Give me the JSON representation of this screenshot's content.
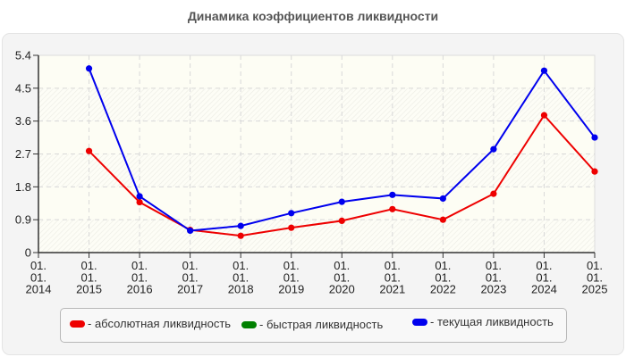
{
  "chart_data": {
    "type": "line",
    "title": "Динамика коэффициентов ликвидности",
    "xlabel": "",
    "ylabel": "",
    "x": [
      "01.\n01.\n2014",
      "01.\n01.\n2015",
      "01.\n01.\n2016",
      "01.\n01.\n2017",
      "01.\n01.\n2018",
      "01.\n01.\n2019",
      "01.\n01.\n2020",
      "01.\n01.\n2021",
      "01.\n01.\n2022",
      "01.\n01.\n2023",
      "01.\n01.\n2024",
      "01.\n01.\n2025"
    ],
    "x_tick_labels": [
      [
        "01.",
        "01.",
        "2014"
      ],
      [
        "01.",
        "01.",
        "2015"
      ],
      [
        "01.",
        "01.",
        "2016"
      ],
      [
        "01.",
        "01.",
        "2017"
      ],
      [
        "01.",
        "01.",
        "2018"
      ],
      [
        "01.",
        "01.",
        "2019"
      ],
      [
        "01.",
        "01.",
        "2020"
      ],
      [
        "01.",
        "01.",
        "2021"
      ],
      [
        "01.",
        "01.",
        "2022"
      ],
      [
        "01.",
        "01.",
        "2023"
      ],
      [
        "01.",
        "01.",
        "2024"
      ],
      [
        "01.",
        "01.",
        "2025"
      ]
    ],
    "y_ticks": [
      "0",
      "0.9",
      "1.8",
      "2.7",
      "3.6",
      "4.5",
      "5.4"
    ],
    "ylim": [
      0,
      5.4
    ],
    "grid": true,
    "legend_position": "bottom",
    "series": [
      {
        "name": "- абсолютная ликвидность",
        "color": "#ee0000",
        "values": [
          null,
          2.78,
          1.38,
          0.62,
          0.46,
          0.68,
          0.87,
          1.19,
          0.9,
          1.61,
          3.76,
          2.22
        ]
      },
      {
        "name": "- быстрая ликвидность",
        "color": "#008000",
        "values": [
          null,
          null,
          null,
          null,
          null,
          null,
          null,
          null,
          null,
          null,
          null,
          null
        ]
      },
      {
        "name": "- текущая ликвидность",
        "color": "#0000ee",
        "values": [
          null,
          5.04,
          1.54,
          0.6,
          0.73,
          1.08,
          1.39,
          1.58,
          1.48,
          2.83,
          4.98,
          3.15
        ]
      }
    ]
  },
  "legend": {
    "items": [
      {
        "label": "- абсолютная ликвидность",
        "color": "#ee0000"
      },
      {
        "label": "- быстрая ликвидность",
        "color": "#008000"
      },
      {
        "label": "- текущая ликвидность",
        "color": "#0000ee"
      }
    ]
  }
}
